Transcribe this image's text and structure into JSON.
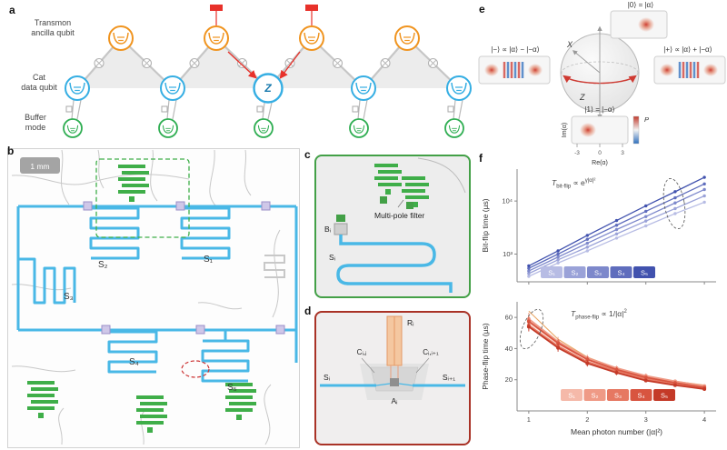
{
  "figure": {
    "panel_labels": {
      "a": "a",
      "b": "b",
      "c": "c",
      "d": "d",
      "e": "e",
      "f": "f"
    }
  },
  "panel_a": {
    "legend": {
      "transmon": "Transmon\nancilla qubit",
      "cat": "Cat\ndata qubit",
      "buffer": "Buffer\nmode"
    },
    "error_label": "Z",
    "colors": {
      "transmon": "#f0941f",
      "cat": "#35aee3",
      "buffer": "#2fae52",
      "error": "#e8312a"
    }
  },
  "panel_b": {
    "scale_bar": "1 mm",
    "labels": {
      "s1": "S₁",
      "s2": "S₂",
      "s3": "S₃",
      "s4": "S₄",
      "s5": "S₅"
    }
  },
  "panel_c": {
    "filter_label": "Multi-pole filter",
    "buffer_label": "Bᵢ",
    "resonator_label": "Sᵢ"
  },
  "panel_d": {
    "readout_label": "Rᵢ",
    "coupler_left_label": "Cᵢ,ⱼ",
    "coupler_right_label": "Cᵢ,ᵢ₊₁",
    "s_left_label": "Sᵢ",
    "s_right_label": "Sᵢ₊₁",
    "ats_label": "Aᵢ"
  },
  "panel_e": {
    "state_top": "|0⟩ = |α⟩",
    "state_bottom": "|1⟩ = |−α⟩",
    "state_left": "|−⟩ ∝ |α⟩ − |−α⟩",
    "state_right": "|+⟩ ∝ |α⟩ + |−α⟩",
    "axis_x": "X",
    "axis_z": "Z",
    "wigner": {
      "xlabel": "Re(α)",
      "ylabel": "Im(α)",
      "xticks": [
        "-3",
        "0",
        "3"
      ],
      "colorbar_label": "P"
    }
  },
  "chart_data": [
    {
      "type": "line",
      "ylabel": "Bit-flip time (µs)",
      "xlabel": "",
      "yscale": "log",
      "ylim": [
        300,
        40000
      ],
      "x": [
        1,
        1.5,
        2,
        2.5,
        3,
        3.5,
        4
      ],
      "yticks": [
        {
          "value": 1000,
          "label": "10³"
        },
        {
          "value": 10000,
          "label": "10⁴"
        }
      ],
      "xticks": [
        1,
        2,
        3,
        4
      ],
      "series": [
        {
          "name": "S₁",
          "color": "#b7bce4",
          "values": [
            380,
            680,
            1150,
            2000,
            3400,
            5800,
            9500
          ]
        },
        {
          "name": "S₂",
          "color": "#9aa2d8",
          "values": [
            430,
            780,
            1350,
            2400,
            4200,
            7200,
            12500
          ]
        },
        {
          "name": "S₃",
          "color": "#7d88cb",
          "values": [
            480,
            880,
            1600,
            2900,
            5100,
            9200,
            16500
          ]
        },
        {
          "name": "S₄",
          "color": "#5f6dbd",
          "values": [
            540,
            1000,
            1900,
            3500,
            6400,
            11500,
            21000
          ]
        },
        {
          "name": "S₅",
          "color": "#4152ae",
          "values": [
            600,
            1150,
            2250,
            4300,
            8100,
            15000,
            28000
          ]
        }
      ],
      "annotation": {
        "t": "T",
        "sub": "bit-flip",
        "mid": " ∝ e",
        "sup": "γ|α|²"
      },
      "legend": {
        "labels": [
          "S₁",
          "S₂",
          "S₃",
          "S₄",
          "S₅"
        ],
        "colors": [
          "#b7bce4",
          "#9aa2d8",
          "#7d88cb",
          "#5f6dbd",
          "#4152ae"
        ]
      }
    },
    {
      "type": "line",
      "ylabel": "Phase-flip time (µs)",
      "xlabel": "Mean photon number (|α|²)",
      "yscale": "linear",
      "ylim": [
        0,
        70
      ],
      "x": [
        1,
        1.5,
        2,
        2.5,
        3,
        3.5,
        4
      ],
      "yticks": [
        {
          "value": 20,
          "label": "20"
        },
        {
          "value": 40,
          "label": "40"
        },
        {
          "value": 60,
          "label": "60"
        }
      ],
      "xticks": [
        1,
        2,
        3,
        4
      ],
      "series": [
        {
          "name": "S₁",
          "color": "#f5b9a9",
          "values": [
            57,
            43,
            33,
            26.5,
            21.5,
            18,
            15.5
          ],
          "errors": [
            4,
            3,
            2,
            1.5,
            1.5,
            1,
            1
          ]
        },
        {
          "name": "S₂",
          "color": "#ef9a86",
          "values": [
            59,
            44.5,
            34,
            27.5,
            22.5,
            19,
            16
          ],
          "errors": [
            4,
            3,
            2,
            1.5,
            1.5,
            1,
            1
          ]
        },
        {
          "name": "S₃",
          "color": "#e67862",
          "values": [
            55,
            41.5,
            31.5,
            25.5,
            20.5,
            17,
            14.5
          ],
          "errors": [
            3,
            2.5,
            2,
            1.5,
            1,
            1,
            1
          ]
        },
        {
          "name": "S₄",
          "color": "#d85540",
          "values": [
            57.5,
            43.5,
            33,
            26.5,
            21.5,
            18,
            15
          ],
          "errors": [
            3,
            2.5,
            2,
            1.5,
            1,
            1,
            1
          ]
        },
        {
          "name": "S₅",
          "color": "#c43a28",
          "values": [
            54,
            40.5,
            30.5,
            24.5,
            19.5,
            16.5,
            14
          ],
          "errors": [
            3,
            2.5,
            2,
            1.5,
            1,
            1,
            1
          ]
        }
      ],
      "fit_line": {
        "color": "#e9a766",
        "values": [
          64,
          46,
          34.5,
          27.5,
          22.5,
          19,
          16.5
        ]
      },
      "annotation": {
        "t": "T",
        "sub": "phase-flip",
        "mid": " ∝ 1/|α|",
        "sup": "2"
      },
      "legend": {
        "labels": [
          "S₁",
          "S₂",
          "S₃",
          "S₄",
          "S₅"
        ],
        "colors": [
          "#f5b9a9",
          "#ef9a86",
          "#e67862",
          "#d85540",
          "#c43a28"
        ]
      }
    }
  ]
}
